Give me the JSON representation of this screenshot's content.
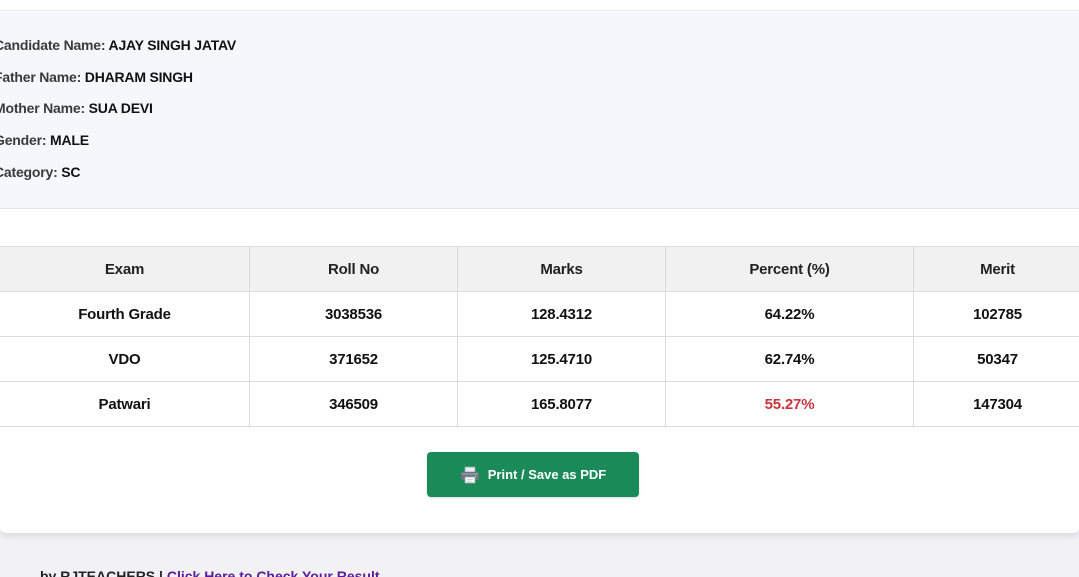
{
  "candidate": {
    "name_label": "Candidate Name:",
    "name_value": "AJAY SINGH JATAV",
    "father_label": "Father Name:",
    "father_value": "DHARAM SINGH",
    "mother_label": "Mother Name:",
    "mother_value": "SUA DEVI",
    "gender_label": "Gender:",
    "gender_value": "MALE",
    "category_label": "Category:",
    "category_value": "SC"
  },
  "results_table": {
    "headers": [
      "Exam",
      "Roll No",
      "Marks",
      "Percent (%)",
      "Merit"
    ],
    "rows": [
      [
        "Fourth Grade",
        "3038536",
        "128.4312",
        "64.22%",
        "102785"
      ],
      [
        "VDO",
        "371652",
        "125.4710",
        "62.74%",
        "50347"
      ],
      [
        "Patwari",
        "346509",
        "165.8077",
        "55.27%",
        "147304"
      ]
    ],
    "highlight_color": "#c9363e"
  },
  "actions": {
    "print_label": "Print / Save as PDF",
    "print_icon": "printer-icon",
    "button_color": "#1a8a58"
  },
  "footer": {
    "prefix": "by",
    "brand": "RJTEACHERS",
    "separator": "|",
    "link_text": "Click Here to Check Your Result"
  }
}
